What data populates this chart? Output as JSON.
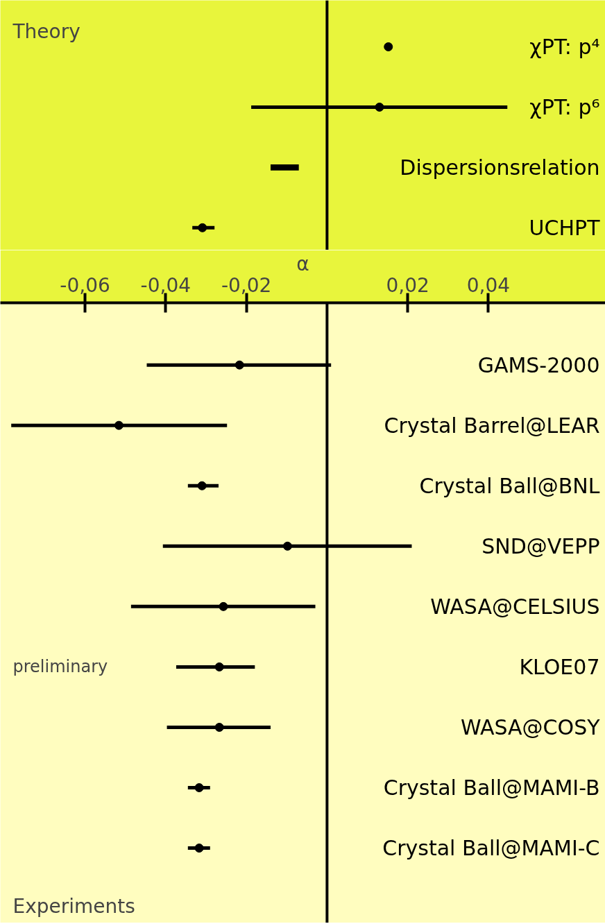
{
  "chart_data": [
    {
      "type": "scatter",
      "orientation": "horizontal",
      "categories": [
        "χPT: p⁴",
        "χPT: p⁶",
        "Dispersionsrelation",
        "UCHPT"
      ],
      "series": [
        {
          "color": "#000000",
          "marker": "circle",
          "values": [
            0.0152,
            0.013,
            null,
            -0.0309
          ],
          "errors": [
            null,
            [
              -0.0188,
              0.0447
            ],
            null,
            [
              -0.0334,
              -0.0279
            ]
          ]
        },
        {
          "type": "bar",
          "color": "#000000",
          "values": [
            null,
            null,
            0.007,
            null
          ],
          "base": [
            null,
            null,
            -0.014,
            null
          ]
        }
      ],
      "xlim": [
        -0.081,
        0.069
      ],
      "tick_labels": false,
      "grid": false,
      "ref_lines": [
        {
          "axis": "x",
          "value": 0
        }
      ],
      "annotations": [
        "Theory"
      ]
    },
    {
      "type": "scatter",
      "orientation": "horizontal",
      "categories": [
        "GAMS-2000",
        "Crystal Barrel@LEAR",
        "Crystal Ball@BNL",
        "SND@VEPP",
        "WASA@CELSIUS",
        "KLOE07",
        "WASA@COSY",
        "Crystal Ball@MAMI-B",
        "Crystal Ball@MAMI-C"
      ],
      "series": [
        {
          "color": "#000000",
          "marker": "circle",
          "values": [
            -0.0217,
            -0.0516,
            -0.031,
            -0.0098,
            -0.0257,
            -0.0267,
            -0.0267,
            -0.0317,
            -0.0317
          ],
          "errors": [
            [
              -0.0447,
              0.001
            ],
            [
              -0.0783,
              -0.0248
            ],
            [
              -0.0345,
              -0.0269
            ],
            [
              -0.0407,
              0.021
            ],
            [
              -0.0486,
              -0.0029
            ],
            [
              -0.0374,
              -0.0179
            ],
            [
              -0.0397,
              -0.014
            ],
            [
              -0.0345,
              -0.029
            ],
            [
              -0.0345,
              -0.029
            ]
          ]
        }
      ],
      "xlabel": "α",
      "xlim": [
        -0.081,
        0.069
      ],
      "xticks": [
        {
          "value": -0.06,
          "label": "-0,06"
        },
        {
          "value": -0.04,
          "label": "-0,04"
        },
        {
          "value": -0.02,
          "label": "-0,02"
        },
        {
          "value": 0.02,
          "label": "0,02"
        },
        {
          "value": 0.04,
          "label": "0,04"
        }
      ],
      "grid": false,
      "ref_lines": [
        {
          "axis": "x",
          "value": 0
        }
      ],
      "annotations": [
        "Experiments",
        "preliminary"
      ]
    }
  ]
}
